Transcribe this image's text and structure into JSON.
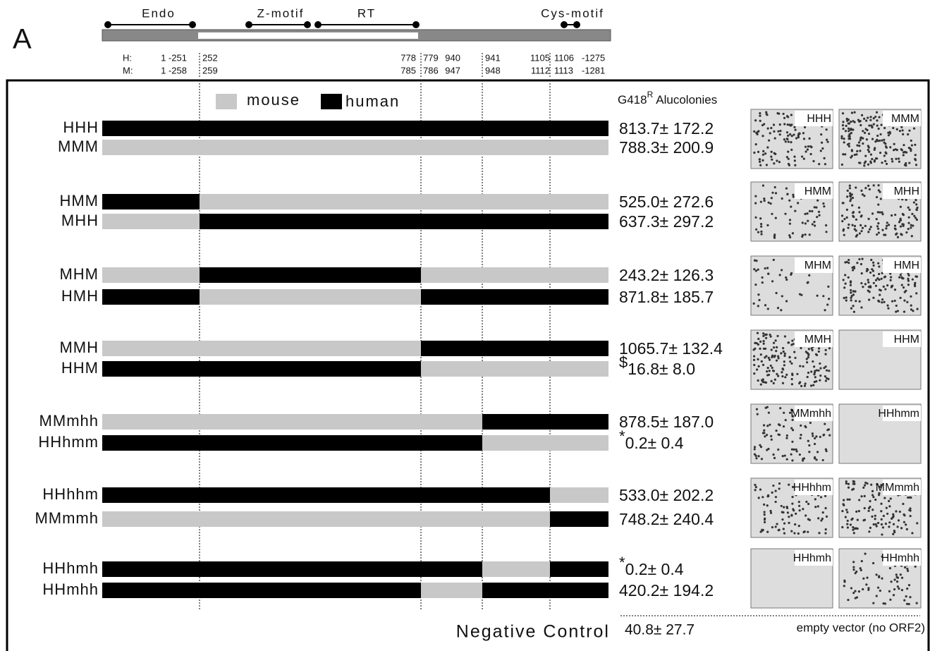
{
  "panel": "A",
  "domains": [
    "Endo",
    "Z-motif",
    "RT",
    "Cys-motif"
  ],
  "coords": [
    {
      "label": "H:",
      "values": [
        "1 -251",
        "252",
        "778",
        "779",
        "940",
        "941",
        "1105",
        "1106",
        "-1275"
      ]
    },
    {
      "label": "M:",
      "values": [
        "1 -258",
        "259",
        "785",
        "786",
        "947",
        "948",
        "1112",
        "1113",
        "-1281"
      ]
    }
  ],
  "legend": [
    "mouse",
    "human"
  ],
  "header": {
    "text": "G418",
    "sup": "R",
    "suffix": "Alucolonies"
  },
  "constructs": [
    {
      "name": "HHH",
      "count": "813.7± 172.2"
    },
    {
      "name": "MMM",
      "count": "788.3± 200.9"
    },
    {
      "name": "HMM",
      "count": "525.0± 272.6"
    },
    {
      "name": "MHH",
      "count": "637.3± 297.2"
    },
    {
      "name": "MHM",
      "count": "243.2± 126.3"
    },
    {
      "name": "HMH",
      "count": "871.8± 185.7"
    },
    {
      "name": "MMH",
      "count": "1065.7± 132.4"
    },
    {
      "name": "HHM",
      "count": "16.8± 8.0",
      "marker": "$"
    },
    {
      "name": "MMmhh",
      "count": "878.5± 187.0"
    },
    {
      "name": "HHhmm",
      "count": "0.2± 0.4",
      "marker": "*"
    },
    {
      "name": "HHhhm",
      "count": "533.0± 202.2"
    },
    {
      "name": "MMmmh",
      "count": "748.2± 240.4"
    },
    {
      "name": "HHhmh",
      "count": "0.2± 0.4",
      "marker": "*"
    },
    {
      "name": "HHmhh",
      "count": "420.2± 194.2"
    }
  ],
  "negative_control": {
    "label": "Negative Control",
    "count": "40.8± 27.7",
    "note": "empty vector (no ORF2)"
  }
}
